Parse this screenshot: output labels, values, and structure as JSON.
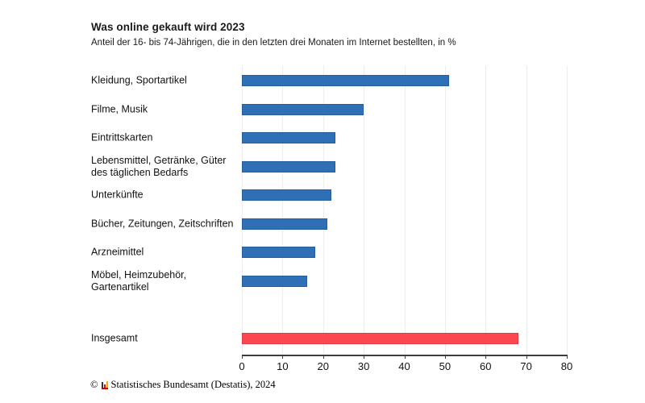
{
  "chart_data": {
    "type": "bar",
    "orientation": "horizontal",
    "title": "Was online gekauft wird 2023",
    "subtitle": "Anteil der 16- bis 74-Jährigen, die in den letzten drei Monaten im Internet bestellten, in %",
    "categories": [
      "Kleidung, Sportartikel",
      "Filme, Musik",
      "Eintrittskarten",
      "Lebensmittel, Getränke, Güter des täglichen Bedarfs",
      "Unterkünfte",
      "Bücher, Zeitungen, Zeitschriften",
      "Arzneimittel",
      "Möbel, Heimzubehör, Gartenartikel",
      "Insgesamt"
    ],
    "values": [
      51,
      30,
      23,
      23,
      22,
      21,
      18,
      16,
      68
    ],
    "unit": "%",
    "xlim": [
      0,
      80
    ],
    "xticks": [
      0,
      10,
      20,
      30,
      40,
      50,
      60,
      70,
      80
    ],
    "grid": true,
    "gap_before_last": true,
    "highlight_category": "Insgesamt",
    "colors": {
      "bar_fill": "#2F6FB5",
      "bar_border": "#255E9C",
      "highlight_fill": "#FB4750",
      "highlight_border": "#E23B43",
      "gridline": "#ececec",
      "axis": "#3d3d3d"
    }
  },
  "footer": {
    "copyright_symbol": "©",
    "logo_icon": "destatis-logo",
    "text": "Statistisches Bundesamt (Destatis), 2024"
  }
}
